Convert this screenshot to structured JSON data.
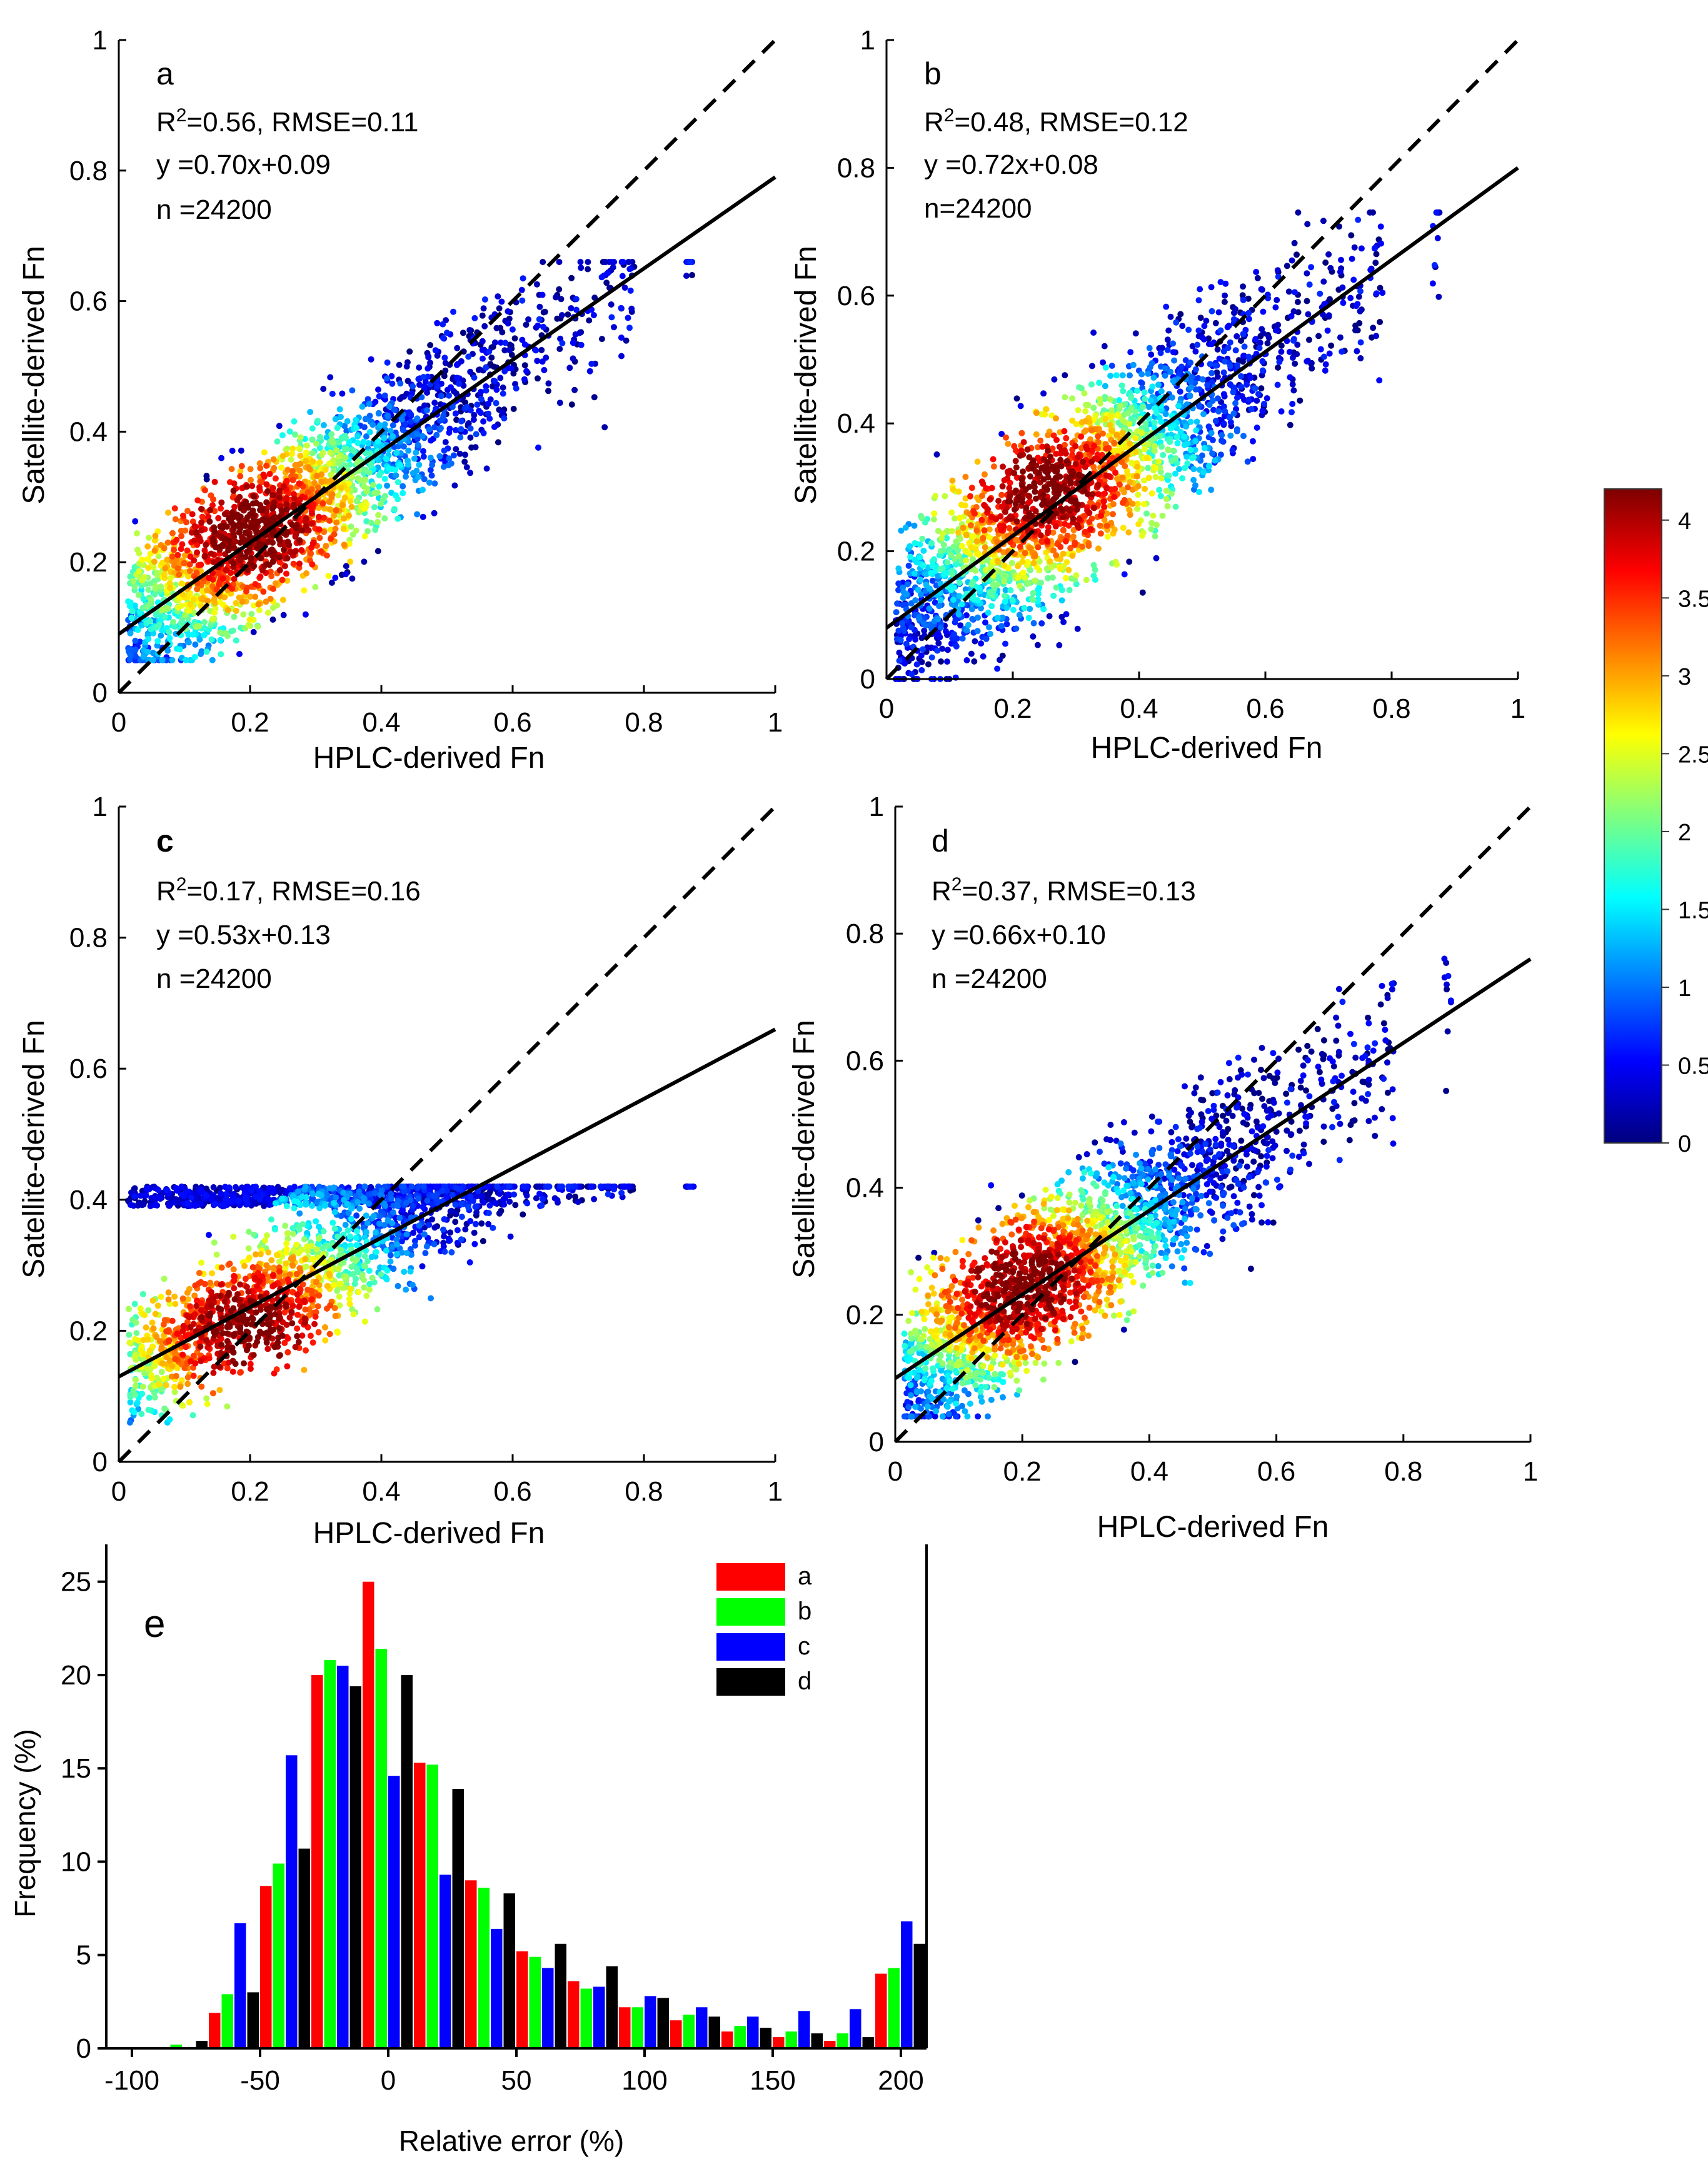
{
  "colorbar": {
    "ticks": [
      "0",
      "0.5",
      "1",
      "1.5",
      "2",
      "2.5",
      "3",
      "3.5",
      "4"
    ],
    "range": [
      0,
      4.2
    ],
    "stops": [
      "#00007f",
      "#0000ff",
      "#007fff",
      "#00ffff",
      "#7fff7f",
      "#ffff00",
      "#ff7f00",
      "#ff0000",
      "#7f0000"
    ]
  },
  "chart_data": [
    {
      "type": "scatter",
      "panel": "a",
      "xlabel": "HPLC-derived Fn",
      "ylabel": "Satellite-derived Fn",
      "xlim": [
        0,
        1
      ],
      "ylim": [
        0,
        1
      ],
      "xticks": [
        "0",
        "0.2",
        "0.4",
        "0.6",
        "0.8",
        "1"
      ],
      "yticks": [
        "0",
        "0.2",
        "0.4",
        "0.6",
        "0.8",
        "1"
      ],
      "stats": {
        "r2_prefix": "R",
        "r2_sup": "2",
        "r2_rest": "=0.56, RMSE=0.11",
        "fit": "y =0.70x+0.09",
        "n": "n =24200"
      },
      "fit_line": {
        "slope": 0.7,
        "intercept": 0.09
      },
      "one_to_one": true,
      "cluster": {
        "center": [
          0.2,
          0.25
        ],
        "ymin": 0.05,
        "ymax": 0.63,
        "yclip": 0.66,
        "spread": 0.1
      }
    },
    {
      "type": "scatter",
      "panel": "b",
      "xlabel": "HPLC-derived Fn",
      "ylabel": "Satellite-derived Fn",
      "xlim": [
        0,
        1
      ],
      "ylim": [
        0,
        1
      ],
      "xticks": [
        "0",
        "0.2",
        "0.4",
        "0.6",
        "0.8",
        "1"
      ],
      "yticks": [
        "0",
        "0.2",
        "0.4",
        "0.6",
        "0.8",
        "1"
      ],
      "stats": {
        "r2_prefix": "R",
        "r2_sup": "2",
        "r2_rest": "=0.48, RMSE=0.12",
        "fit": "y =0.72x+0.08",
        "n": "n=24200"
      },
      "fit_line": {
        "slope": 0.72,
        "intercept": 0.08
      },
      "one_to_one": true,
      "cluster": {
        "center": [
          0.25,
          0.3
        ],
        "ymin": 0.0,
        "ymax": 0.7,
        "yclip": 0.73,
        "spread": 0.12
      }
    },
    {
      "type": "scatter",
      "panel": "c",
      "xlabel": "HPLC-derived Fn",
      "ylabel": "Satellite-derived Fn",
      "xlim": [
        0,
        1
      ],
      "ylim": [
        0,
        1
      ],
      "xticks": [
        "0",
        "0.2",
        "0.4",
        "0.6",
        "0.8",
        "1"
      ],
      "yticks": [
        "0",
        "0.2",
        "0.4",
        "0.6",
        "0.8",
        "1"
      ],
      "stats": {
        "r2_prefix": "R",
        "r2_sup": "2",
        "r2_rest": "=0.17, RMSE=0.16",
        "fit": "y =0.53x+0.13",
        "n": "n =24200"
      },
      "fit_line": {
        "slope": 0.53,
        "intercept": 0.13
      },
      "one_to_one": true,
      "cluster": {
        "center": [
          0.2,
          0.2
        ],
        "ymin": 0.06,
        "ymax": 0.42,
        "yclip": 0.42,
        "spread": 0.1
      }
    },
    {
      "type": "scatter",
      "panel": "d",
      "xlabel": "HPLC-derived Fn",
      "ylabel": "Satellite-derived Fn",
      "xlim": [
        0,
        1
      ],
      "ylim": [
        0,
        1
      ],
      "xticks": [
        "0",
        "0.2",
        "0.4",
        "0.6",
        "0.8",
        "1"
      ],
      "yticks": [
        "0",
        "0.2",
        "0.4",
        "0.6",
        "0.8",
        "1"
      ],
      "stats": {
        "r2_prefix": "R",
        "r2_sup": "2",
        "r2_rest": "=0.37, RMSE=0.13",
        "fit": "y =0.66x+0.10",
        "n": "n =24200"
      },
      "fit_line": {
        "slope": 0.66,
        "intercept": 0.1
      },
      "one_to_one": true,
      "cluster": {
        "center": [
          0.2,
          0.25
        ],
        "ymin": 0.04,
        "ymax": 0.7,
        "yclip": 0.77,
        "spread": 0.11
      }
    },
    {
      "type": "bar",
      "panel": "e",
      "xlabel": "Relative error (%)",
      "ylabel": "Frequency (%)",
      "xlim": [
        -110,
        210
      ],
      "ylim": [
        0,
        27
      ],
      "xticks": [
        -100,
        -50,
        0,
        50,
        100,
        150,
        200
      ],
      "yticks": [
        0,
        5,
        10,
        15,
        20,
        25
      ],
      "categories": [
        -80,
        -60,
        -40,
        -20,
        0,
        20,
        40,
        60,
        80,
        100,
        120,
        140,
        160,
        180,
        200
      ],
      "series": [
        {
          "name": "a",
          "color": "#ff0000",
          "values": [
            0.0,
            1.9,
            8.7,
            20.0,
            25.0,
            15.3,
            9.0,
            5.2,
            3.6,
            2.2,
            1.5,
            0.9,
            0.6,
            0.4,
            4.0
          ]
        },
        {
          "name": "b",
          "color": "#00ff00",
          "values": [
            0.2,
            2.9,
            9.9,
            20.8,
            21.4,
            15.2,
            8.6,
            4.9,
            3.2,
            2.2,
            1.8,
            1.2,
            0.9,
            0.8,
            4.3
          ]
        },
        {
          "name": "c",
          "color": "#0000ff",
          "values": [
            0.0,
            6.7,
            15.7,
            20.5,
            14.6,
            9.3,
            6.4,
            4.3,
            3.3,
            2.8,
            2.2,
            1.7,
            2.0,
            2.1,
            6.8
          ]
        },
        {
          "name": "d",
          "color": "#000000",
          "values": [
            0.4,
            3.0,
            10.7,
            19.4,
            20.0,
            13.9,
            8.3,
            5.6,
            4.4,
            2.7,
            1.7,
            1.1,
            0.8,
            0.6,
            5.6
          ]
        }
      ],
      "legend": [
        "a",
        "b",
        "c",
        "d"
      ]
    }
  ]
}
